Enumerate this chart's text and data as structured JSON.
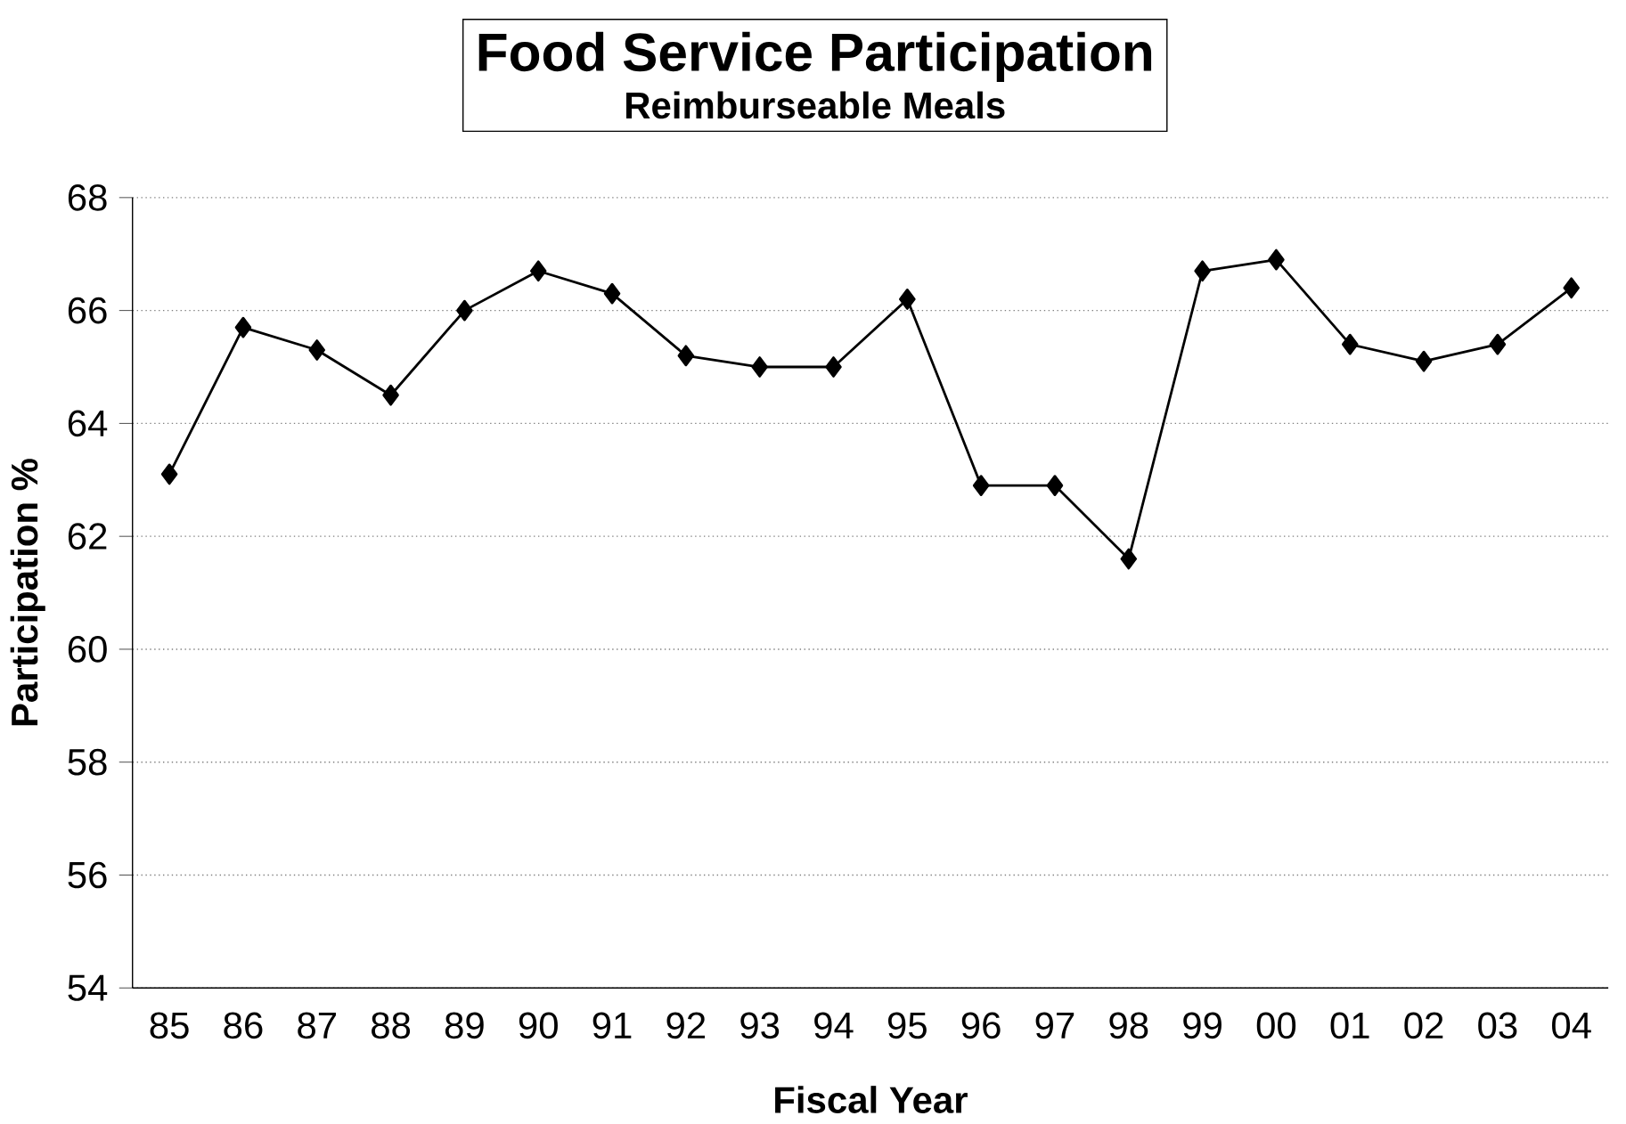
{
  "chart_data": {
    "type": "line",
    "title": "Food Service Participation",
    "subtitle": "Reimburseable Meals",
    "xlabel": "Fiscal Year",
    "ylabel": "Participation %",
    "categories": [
      "85",
      "86",
      "87",
      "88",
      "89",
      "90",
      "91",
      "92",
      "93",
      "94",
      "95",
      "96",
      "97",
      "98",
      "99",
      "00",
      "01",
      "02",
      "03",
      "04"
    ],
    "series": [
      {
        "color": "#000000",
        "values": [
          63.1,
          65.7,
          65.3,
          64.5,
          66.0,
          66.7,
          66.3,
          65.2,
          65.0,
          65.0,
          66.2,
          62.9,
          62.9,
          61.6,
          66.7,
          66.9,
          65.4,
          65.1,
          65.4,
          66.4
        ]
      }
    ],
    "ylim": [
      54,
      68
    ],
    "yticks": [
      54,
      56,
      58,
      60,
      62,
      64,
      66,
      68
    ],
    "grid": "y",
    "marker": "diamond",
    "line_style": "solid"
  }
}
